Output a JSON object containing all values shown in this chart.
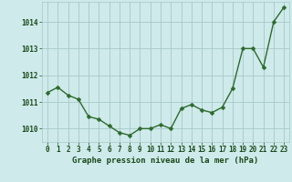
{
  "x": [
    0,
    1,
    2,
    3,
    4,
    5,
    6,
    7,
    8,
    9,
    10,
    11,
    12,
    13,
    14,
    15,
    16,
    17,
    18,
    19,
    20,
    21,
    22,
    23
  ],
  "y": [
    1011.35,
    1011.55,
    1011.25,
    1011.1,
    1010.45,
    1010.35,
    1010.1,
    1009.85,
    1009.75,
    1010.0,
    1010.0,
    1010.15,
    1010.0,
    1010.75,
    1010.9,
    1010.7,
    1010.6,
    1010.8,
    1011.5,
    1013.0,
    1013.0,
    1012.3,
    1014.0,
    1014.55
  ],
  "line_color": "#2d6a2d",
  "marker_color": "#2d6a2d",
  "bg_color": "#ceeaea",
  "grid_color": "#a8c8c8",
  "xlabel": "Graphe pression niveau de la mer (hPa)",
  "xlabel_color": "#1a4a1a",
  "tick_label_color": "#1a4a1a",
  "ylim": [
    1009.5,
    1014.75
  ],
  "yticks": [
    1010,
    1011,
    1012,
    1013,
    1014
  ],
  "xticks": [
    0,
    1,
    2,
    3,
    4,
    5,
    6,
    7,
    8,
    9,
    10,
    11,
    12,
    13,
    14,
    15,
    16,
    17,
    18,
    19,
    20,
    21,
    22,
    23
  ],
  "marker_size": 2.5,
  "line_width": 1.0,
  "font_size_ticks": 5.5,
  "font_size_xlabel": 6.5
}
